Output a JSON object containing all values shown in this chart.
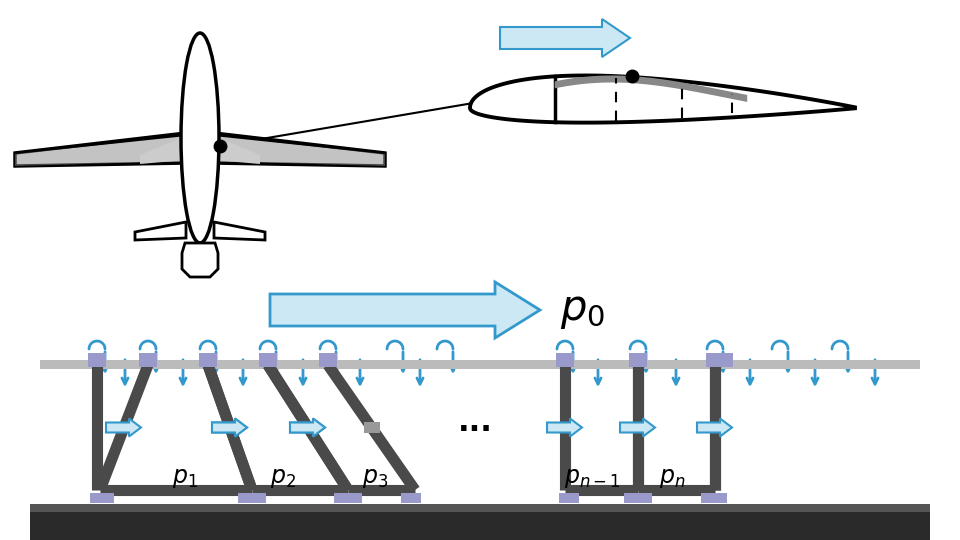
{
  "bg_color": "#ffffff",
  "black": "#000000",
  "white": "#ffffff",
  "dark_gray": "#444444",
  "panel_gray": "#555555",
  "light_gray": "#aaaaaa",
  "mid_gray": "#888888",
  "blue": "#3399cc",
  "blue_light": "#cce8f4",
  "purple": "#9999cc",
  "base_dark": "#2a2a2a",
  "wing_gray": "#888888"
}
